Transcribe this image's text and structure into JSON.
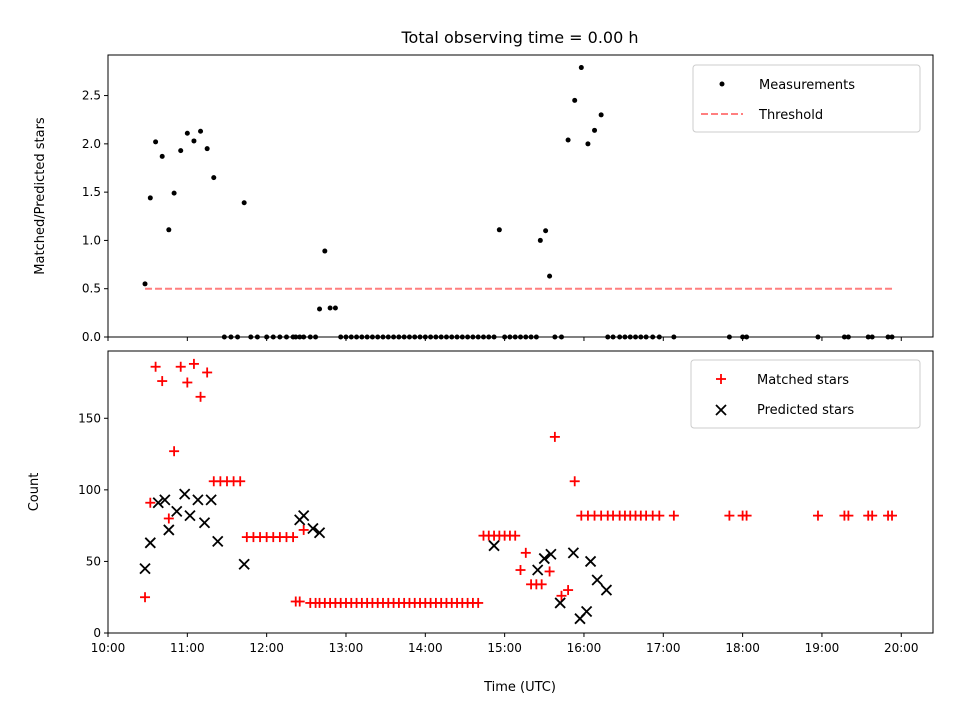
{
  "chart_data": [
    {
      "type": "scatter",
      "title": "Total observing time = 0.00 h",
      "xlabel": "",
      "ylabel": "Matched/Predicted stars",
      "xlim": [
        "10:00",
        "20:24"
      ],
      "ylim": [
        0,
        2.92
      ],
      "xticks": [
        "10:00",
        "11:00",
        "12:00",
        "13:00",
        "14:00",
        "15:00",
        "16:00",
        "17:00",
        "18:00",
        "19:00",
        "20:00"
      ],
      "xtick_labels_visible": false,
      "yticks": [
        "0.0",
        "0.5",
        "1.0",
        "1.5",
        "2.0",
        "2.5"
      ],
      "legend_position": "top-right",
      "legend": [
        {
          "label": "Measurements",
          "marker": "dot",
          "color": "#000000"
        },
        {
          "label": "Threshold",
          "marker": "dashed-line",
          "color": "#ff7f7f"
        }
      ],
      "series": [
        {
          "name": "Measurements",
          "marker": "dot",
          "color": "#000000",
          "x": [
            "10:28",
            "10:32",
            "10:36",
            "10:41",
            "10:46",
            "10:50",
            "10:55",
            "11:00",
            "11:05",
            "11:10",
            "11:15",
            "11:20",
            "11:28",
            "11:33",
            "11:38",
            "11:43",
            "11:48",
            "11:53",
            "12:00",
            "12:05",
            "12:10",
            "12:15",
            "12:20",
            "12:22",
            "12:25",
            "12:28",
            "12:33",
            "12:37",
            "12:40",
            "12:44",
            "12:48",
            "12:52",
            "12:56",
            "13:00",
            "13:04",
            "13:08",
            "13:12",
            "13:16",
            "13:20",
            "13:24",
            "13:28",
            "13:32",
            "13:36",
            "13:40",
            "13:44",
            "13:48",
            "13:52",
            "13:56",
            "14:00",
            "14:04",
            "14:08",
            "14:12",
            "14:16",
            "14:20",
            "14:24",
            "14:28",
            "14:32",
            "14:36",
            "14:40",
            "14:44",
            "14:48",
            "14:52",
            "14:56",
            "15:00",
            "15:04",
            "15:08",
            "15:12",
            "15:16",
            "15:20",
            "15:24",
            "15:27",
            "15:31",
            "15:34",
            "15:38",
            "15:43",
            "15:48",
            "15:53",
            "15:58",
            "16:03",
            "16:08",
            "16:13",
            "16:18",
            "16:22",
            "16:27",
            "16:31",
            "16:35",
            "16:39",
            "16:43",
            "16:47",
            "16:52",
            "16:57",
            "17:08",
            "17:50",
            "18:00",
            "18:03",
            "18:57",
            "19:17",
            "19:20",
            "19:35",
            "19:38",
            "19:50",
            "19:53"
          ],
          "y": [
            0.55,
            1.44,
            2.02,
            1.87,
            1.11,
            1.49,
            1.93,
            2.11,
            2.03,
            2.13,
            1.95,
            1.65,
            0,
            0,
            0,
            1.39,
            0,
            0,
            0,
            0,
            0,
            0,
            0,
            0,
            0,
            0,
            0,
            0,
            0.29,
            0.89,
            0.3,
            0.3,
            0,
            0,
            0,
            0,
            0,
            0,
            0,
            0,
            0,
            0,
            0,
            0,
            0,
            0,
            0,
            0,
            0,
            0,
            0,
            0,
            0,
            0,
            0,
            0,
            0,
            0,
            0,
            0,
            0,
            0,
            1.11,
            0,
            0,
            0,
            0,
            0,
            0,
            0,
            1.0,
            1.1,
            0.63,
            0,
            0,
            2.04,
            2.45,
            2.79,
            2.0,
            2.14,
            2.3,
            0,
            0,
            0,
            0,
            0,
            0,
            0,
            0,
            0,
            0,
            0,
            0,
            0,
            0,
            0,
            0,
            0,
            0,
            0,
            0,
            0
          ]
        },
        {
          "name": "Threshold",
          "marker": "dashed-line",
          "color": "#ff7f7f",
          "x": [
            "10:28",
            "19:53"
          ],
          "y": [
            0.5,
            0.5
          ]
        }
      ]
    },
    {
      "type": "scatter",
      "title": "",
      "xlabel": "Time (UTC)",
      "ylabel": "Count",
      "xlim": [
        "10:00",
        "20:24"
      ],
      "ylim": [
        0,
        197
      ],
      "xticks": [
        "10:00",
        "11:00",
        "12:00",
        "13:00",
        "14:00",
        "15:00",
        "16:00",
        "17:00",
        "18:00",
        "19:00",
        "20:00"
      ],
      "xtick_labels_visible": true,
      "yticks": [
        "0",
        "50",
        "100",
        "150"
      ],
      "legend_position": "top-right",
      "legend": [
        {
          "label": "Matched stars",
          "marker": "plus",
          "color": "#ff0000"
        },
        {
          "label": "Predicted stars",
          "marker": "x",
          "color": "#000000"
        }
      ],
      "series": [
        {
          "name": "Matched stars",
          "marker": "plus",
          "color": "#ff0000",
          "x": [
            "10:28",
            "10:32",
            "10:36",
            "10:41",
            "10:46",
            "10:50",
            "10:55",
            "11:00",
            "11:05",
            "11:10",
            "11:15",
            "11:20",
            "11:25",
            "11:30",
            "11:35",
            "11:40",
            "11:45",
            "11:50",
            "11:55",
            "12:00",
            "12:05",
            "12:10",
            "12:15",
            "12:20",
            "12:22",
            "12:25",
            "12:28",
            "12:33",
            "12:37",
            "12:40",
            "12:44",
            "12:48",
            "12:52",
            "12:56",
            "13:00",
            "13:04",
            "13:08",
            "13:12",
            "13:16",
            "13:20",
            "13:24",
            "13:28",
            "13:32",
            "13:36",
            "13:40",
            "13:44",
            "13:48",
            "13:52",
            "13:56",
            "14:00",
            "14:04",
            "14:08",
            "14:12",
            "14:16",
            "14:20",
            "14:24",
            "14:28",
            "14:32",
            "14:36",
            "14:40",
            "14:44",
            "14:48",
            "14:52",
            "14:56",
            "15:00",
            "15:04",
            "15:08",
            "15:12",
            "15:16",
            "15:20",
            "15:24",
            "15:28",
            "15:34",
            "15:38",
            "15:43",
            "15:48",
            "15:53",
            "15:58",
            "16:03",
            "16:08",
            "16:13",
            "16:18",
            "16:22",
            "16:27",
            "16:31",
            "16:35",
            "16:39",
            "16:43",
            "16:47",
            "16:52",
            "16:57",
            "17:08",
            "17:50",
            "18:00",
            "18:03",
            "18:57",
            "19:17",
            "19:20",
            "19:35",
            "19:38",
            "19:50",
            "19:53"
          ],
          "y": [
            25,
            91,
            186,
            176,
            80,
            127,
            186,
            175,
            188,
            165,
            182,
            106,
            106,
            106,
            106,
            106,
            67,
            67,
            67,
            67,
            67,
            67,
            67,
            67,
            22,
            22,
            72,
            21,
            21,
            21,
            21,
            21,
            21,
            21,
            21,
            21,
            21,
            21,
            21,
            21,
            21,
            21,
            21,
            21,
            21,
            21,
            21,
            21,
            21,
            21,
            21,
            21,
            21,
            21,
            21,
            21,
            21,
            21,
            21,
            21,
            68,
            68,
            68,
            68,
            68,
            68,
            68,
            44,
            56,
            34,
            34,
            34,
            43,
            137,
            26,
            30,
            106,
            82,
            82,
            82,
            82,
            82,
            82,
            82,
            82,
            82,
            82,
            82,
            82,
            82,
            82,
            82,
            82,
            82,
            82,
            82,
            82,
            82,
            82,
            82,
            82,
            82
          ]
        },
        {
          "name": "Predicted stars",
          "marker": "x",
          "color": "#000000",
          "x": [
            "10:28",
            "10:32",
            "10:38",
            "10:43",
            "10:46",
            "10:52",
            "10:58",
            "11:02",
            "11:08",
            "11:13",
            "11:18",
            "11:23",
            "11:43",
            "12:25",
            "12:28",
            "12:35",
            "12:40",
            "14:52",
            "15:25",
            "15:30",
            "15:35",
            "15:42",
            "15:52",
            "15:57",
            "16:02",
            "16:05",
            "16:10",
            "16:17"
          ],
          "y": [
            45,
            63,
            91,
            93,
            72,
            85,
            97,
            82,
            93,
            77,
            93,
            64,
            48,
            79,
            82,
            73,
            70,
            61,
            44,
            52,
            55,
            21,
            56,
            10,
            15,
            50,
            37,
            30
          ]
        }
      ]
    }
  ]
}
